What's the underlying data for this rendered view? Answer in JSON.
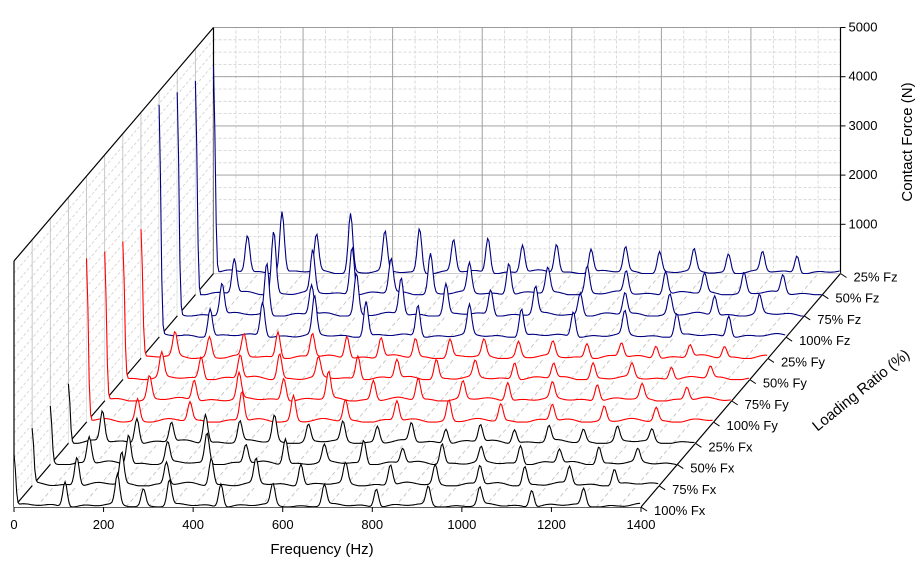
{
  "chart_data": {
    "type": "line",
    "style": "3d-waterfall",
    "grid": true,
    "xlabel": "Frequency (Hz)",
    "zlabel": "Contact Force (N)",
    "ylabel": "Loading Ratio (%)",
    "xlim": [
      0,
      1400
    ],
    "zlim": [
      0,
      5000
    ],
    "x_ticks": [
      "0",
      "200",
      "400",
      "600",
      "800",
      "1000",
      "1200",
      "1400"
    ],
    "z_ticks": [
      "1000",
      "2000",
      "3000",
      "4000",
      "5000"
    ],
    "colors": {
      "Fx": "#000000",
      "Fy": "#ff0000",
      "Fz": "#000080"
    },
    "series": [
      {
        "name": "100% Fx",
        "group": "Fx",
        "dc": 1050,
        "peaks": [
          [
            114,
            520
          ],
          [
            231,
            610
          ],
          [
            289,
            350
          ],
          [
            347,
            520
          ],
          [
            462,
            480
          ],
          [
            578,
            430
          ],
          [
            693,
            420
          ],
          [
            809,
            380
          ],
          [
            925,
            380
          ],
          [
            1040,
            360
          ],
          [
            1156,
            350
          ],
          [
            1272,
            340
          ]
        ]
      },
      {
        "name": "75% Fx",
        "group": "Fx",
        "dc": 1100,
        "peaks": [
          [
            100,
            580
          ],
          [
            200,
            650
          ],
          [
            300,
            450
          ],
          [
            400,
            550
          ],
          [
            500,
            500
          ],
          [
            600,
            450
          ],
          [
            700,
            420
          ],
          [
            800,
            420
          ],
          [
            900,
            400
          ],
          [
            1000,
            380
          ],
          [
            1100,
            380
          ],
          [
            1200,
            350
          ],
          [
            1300,
            320
          ]
        ]
      },
      {
        "name": "50% Fx",
        "group": "Fx",
        "dc": 1150,
        "peaks": [
          [
            87,
            540
          ],
          [
            175,
            600
          ],
          [
            262,
            420
          ],
          [
            350,
            620
          ],
          [
            437,
            380
          ],
          [
            525,
            520
          ],
          [
            612,
            350
          ],
          [
            700,
            480
          ],
          [
            787,
            300
          ],
          [
            875,
            420
          ],
          [
            962,
            300
          ],
          [
            1050,
            380
          ],
          [
            1137,
            280
          ],
          [
            1225,
            350
          ],
          [
            1312,
            260
          ]
        ]
      },
      {
        "name": "25% Fx",
        "group": "Fx",
        "dc": 1200,
        "peaks": [
          [
            76,
            620
          ],
          [
            153,
            520
          ],
          [
            230,
            400
          ],
          [
            306,
            580
          ],
          [
            383,
            420
          ],
          [
            460,
            540
          ],
          [
            536,
            350
          ],
          [
            613,
            400
          ],
          [
            690,
            330
          ],
          [
            766,
            380
          ],
          [
            843,
            300
          ],
          [
            920,
            350
          ],
          [
            996,
            280
          ],
          [
            1073,
            320
          ],
          [
            1150,
            260
          ],
          [
            1226,
            300
          ],
          [
            1303,
            250
          ]
        ]
      },
      {
        "name": "100% Fy",
        "group": "Fy",
        "dc": 3300,
        "peaks": [
          [
            114,
            450
          ],
          [
            231,
            380
          ],
          [
            347,
            600
          ],
          [
            462,
            520
          ],
          [
            578,
            430
          ],
          [
            693,
            400
          ],
          [
            809,
            430
          ],
          [
            925,
            350
          ],
          [
            1040,
            330
          ],
          [
            1156,
            300
          ],
          [
            1272,
            280
          ]
        ]
      },
      {
        "name": "75% Fy",
        "group": "Fy",
        "dc": 3000,
        "peaks": [
          [
            100,
            480
          ],
          [
            200,
            420
          ],
          [
            300,
            520
          ],
          [
            400,
            460
          ],
          [
            500,
            550
          ],
          [
            600,
            400
          ],
          [
            700,
            440
          ],
          [
            800,
            360
          ],
          [
            900,
            380
          ],
          [
            1000,
            320
          ],
          [
            1100,
            340
          ],
          [
            1200,
            300
          ],
          [
            1300,
            260
          ]
        ]
      },
      {
        "name": "50% Fy",
        "group": "Fy",
        "dc": 2800,
        "peaks": [
          [
            87,
            500
          ],
          [
            175,
            450
          ],
          [
            262,
            480
          ],
          [
            350,
            520
          ],
          [
            437,
            400
          ],
          [
            525,
            480
          ],
          [
            612,
            380
          ],
          [
            700,
            400
          ],
          [
            787,
            330
          ],
          [
            875,
            350
          ],
          [
            962,
            300
          ],
          [
            1050,
            320
          ],
          [
            1137,
            280
          ],
          [
            1225,
            260
          ],
          [
            1312,
            240
          ]
        ]
      },
      {
        "name": "25% Fy",
        "group": "Fy",
        "dc": 2600,
        "peaks": [
          [
            76,
            480
          ],
          [
            153,
            420
          ],
          [
            230,
            450
          ],
          [
            306,
            540
          ],
          [
            383,
            480
          ],
          [
            460,
            450
          ],
          [
            536,
            400
          ],
          [
            613,
            380
          ],
          [
            690,
            360
          ],
          [
            766,
            340
          ],
          [
            843,
            320
          ],
          [
            920,
            300
          ],
          [
            996,
            300
          ],
          [
            1073,
            280
          ],
          [
            1150,
            260
          ],
          [
            1226,
            250
          ],
          [
            1303,
            230
          ]
        ]
      },
      {
        "name": "100% Fz",
        "group": "Fz",
        "dc": 4650,
        "peaks": [
          [
            114,
            580
          ],
          [
            231,
            700
          ],
          [
            347,
            780
          ],
          [
            462,
            720
          ],
          [
            578,
            650
          ],
          [
            693,
            600
          ],
          [
            809,
            560
          ],
          [
            925,
            520
          ],
          [
            1040,
            480
          ],
          [
            1156,
            460
          ],
          [
            1272,
            440
          ]
        ]
      },
      {
        "name": "75% Fz",
        "group": "Fz",
        "dc": 4500,
        "peaks": [
          [
            100,
            650
          ],
          [
            200,
            1050
          ],
          [
            300,
            600
          ],
          [
            400,
            850
          ],
          [
            500,
            750
          ],
          [
            600,
            620
          ],
          [
            700,
            520
          ],
          [
            800,
            560
          ],
          [
            900,
            460
          ],
          [
            1000,
            440
          ],
          [
            1100,
            420
          ],
          [
            1200,
            400
          ],
          [
            1300,
            380
          ]
        ]
      },
      {
        "name": "50% Fz",
        "group": "Fz",
        "dc": 4350,
        "peaks": [
          [
            87,
            700
          ],
          [
            175,
            1280
          ],
          [
            262,
            850
          ],
          [
            350,
            980
          ],
          [
            437,
            700
          ],
          [
            525,
            820
          ],
          [
            612,
            600
          ],
          [
            700,
            650
          ],
          [
            787,
            520
          ],
          [
            875,
            560
          ],
          [
            962,
            450
          ],
          [
            1050,
            480
          ],
          [
            1137,
            400
          ],
          [
            1225,
            420
          ],
          [
            1312,
            380
          ]
        ]
      },
      {
        "name": "25% Fz",
        "group": "Fz",
        "dc": 4200,
        "peaks": [
          [
            76,
            750
          ],
          [
            153,
            1250
          ],
          [
            230,
            750
          ],
          [
            306,
            1200
          ],
          [
            383,
            800
          ],
          [
            460,
            900
          ],
          [
            536,
            650
          ],
          [
            613,
            720
          ],
          [
            690,
            560
          ],
          [
            766,
            580
          ],
          [
            843,
            480
          ],
          [
            920,
            500
          ],
          [
            996,
            420
          ],
          [
            1073,
            440
          ],
          [
            1150,
            380
          ],
          [
            1226,
            400
          ],
          [
            1303,
            360
          ]
        ]
      }
    ]
  }
}
